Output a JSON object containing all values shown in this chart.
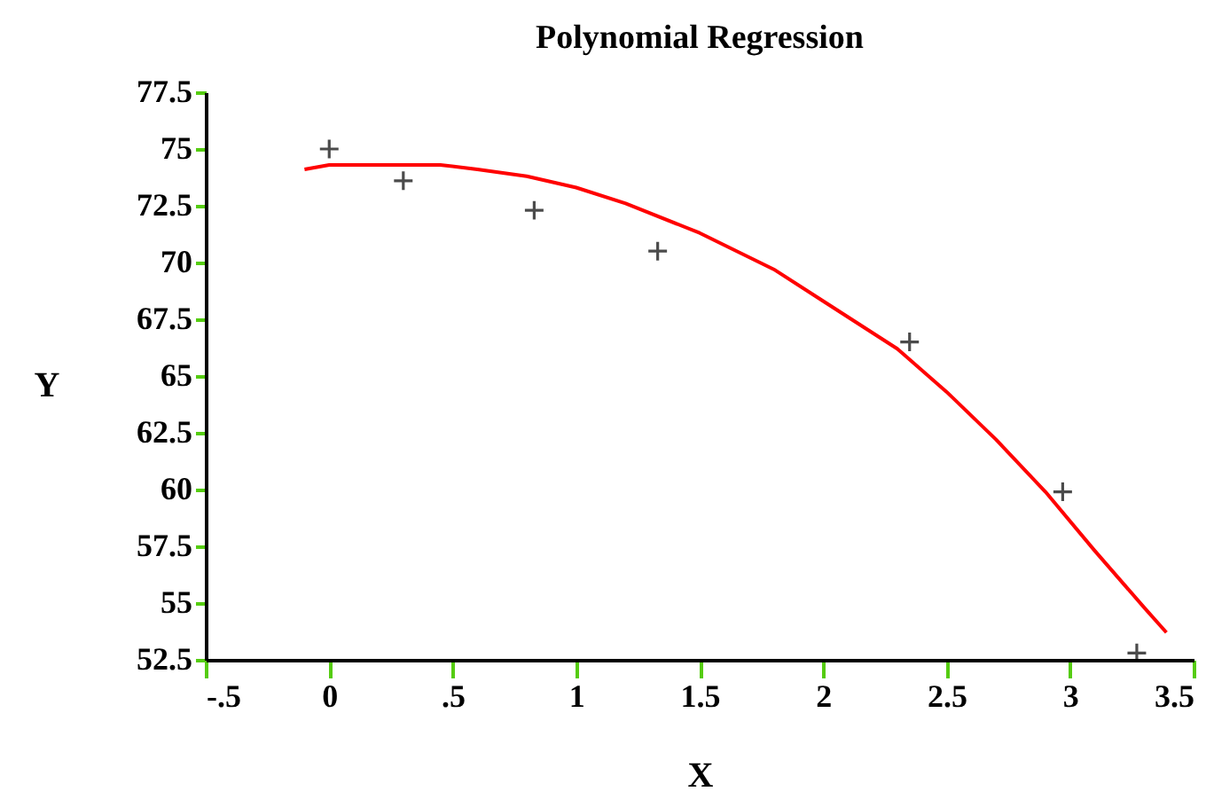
{
  "chart_data": {
    "type": "scatter",
    "title": "Polynomial Regression",
    "xlabel": "X",
    "ylabel": "Y",
    "xlim": [
      -0.5,
      3.5
    ],
    "xticks": [
      {
        "value": -0.5,
        "label": "-.5"
      },
      0,
      {
        "value": 0.5,
        "label": ".5"
      },
      1,
      1.5,
      2,
      2.5,
      3,
      3.5
    ],
    "ylim": [
      52.5,
      77.5
    ],
    "yticks": [
      52.5,
      55,
      57.5,
      60,
      62.5,
      65,
      67.5,
      70,
      72.5,
      75,
      77.5
    ],
    "grid": false,
    "series": [
      {
        "type": "scatter",
        "marker": "cross",
        "color": "#000000",
        "x": [
          0.0,
          0.3,
          0.83,
          1.33,
          2.35,
          2.97,
          3.27
        ],
        "values": [
          75.0,
          73.6,
          72.3,
          70.5,
          66.5,
          59.9,
          52.8
        ]
      },
      {
        "type": "line",
        "color": "#ff0000",
        "x": [
          -0.1,
          0.0,
          0.45,
          0.6,
          0.8,
          1.0,
          1.2,
          1.5,
          1.8,
          2.0,
          2.3,
          2.5,
          2.7,
          2.9,
          3.1,
          3.3,
          3.39
        ],
        "values": [
          74.1,
          74.3,
          74.3,
          74.1,
          73.8,
          73.3,
          72.6,
          71.3,
          69.7,
          68.3,
          66.2,
          64.3,
          62.2,
          59.9,
          57.3,
          54.8,
          53.7
        ]
      }
    ]
  }
}
